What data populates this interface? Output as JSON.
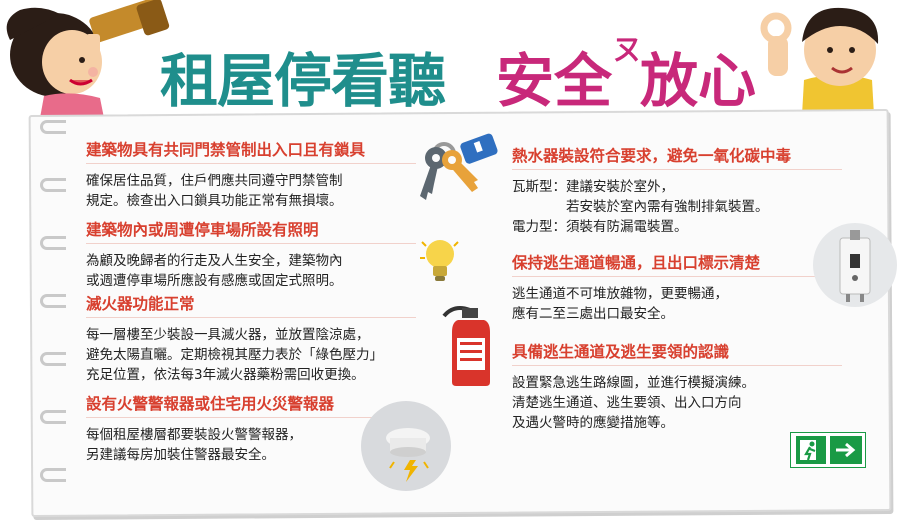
{
  "title": {
    "main": "租屋停看聽",
    "accent1": "安全",
    "sup": "ㄡ",
    "accent2": "放心"
  },
  "left": [
    {
      "heading": "建築物具有共同門禁管制出入口且有鎖具",
      "body": "確保居住品質，住戶們應共同遵守門禁管制\n規定。檢查出入口鎖具功能正常有無損壞。"
    },
    {
      "heading": "建築物內或周遭停車場所設有照明",
      "body": "為顧及晚歸者的行走及人生安全，建築物內\n或週遭停車場所應設有感應或固定式照明。"
    },
    {
      "heading": "滅火器功能正常",
      "body": "每一層樓至少裝設一具滅火器，並放置陰涼處，\n避免太陽直曬。定期檢視其壓力表於「綠色壓力」\n充足位置，依法每3年滅火器藥粉需回收更換。"
    },
    {
      "heading": "設有火警警報器或住宅用火災警報器",
      "body": "每個租屋樓層都要裝設火警警報器，\n另建議每房加裝住警器最安全。"
    }
  ],
  "right": [
    {
      "heading": "熱水器裝設符合要求，避免一氧化碳中毒",
      "body": "瓦斯型：建議安裝於室外，\n　　　　若安裝於室內需有強制排氣裝置。\n電力型：須裝有防漏電裝置。"
    },
    {
      "heading": "保持逃生通道暢通，且出口標示清楚",
      "body": "逃生通道不可堆放雜物，更要暢通，\n應有二至三處出口最安全。"
    },
    {
      "heading": "具備逃生通道及逃生要領的認識",
      "body": "設置緊急逃生路線圖，並進行模擬演練。\n清楚逃生通道、逃生要領、出入口方向\n及遇火警時的應變措施等。"
    }
  ],
  "icons": [
    "keys-icon",
    "lightbulb-icon",
    "fire-extinguisher-icon",
    "smoke-detector-icon",
    "water-heater-icon",
    "exit-sign-icon"
  ],
  "colors": {
    "title_teal": "#1f8e8c",
    "title_pink": "#c8287a",
    "heading_red": "#d8402f",
    "exit_green": "#1a9a45"
  }
}
